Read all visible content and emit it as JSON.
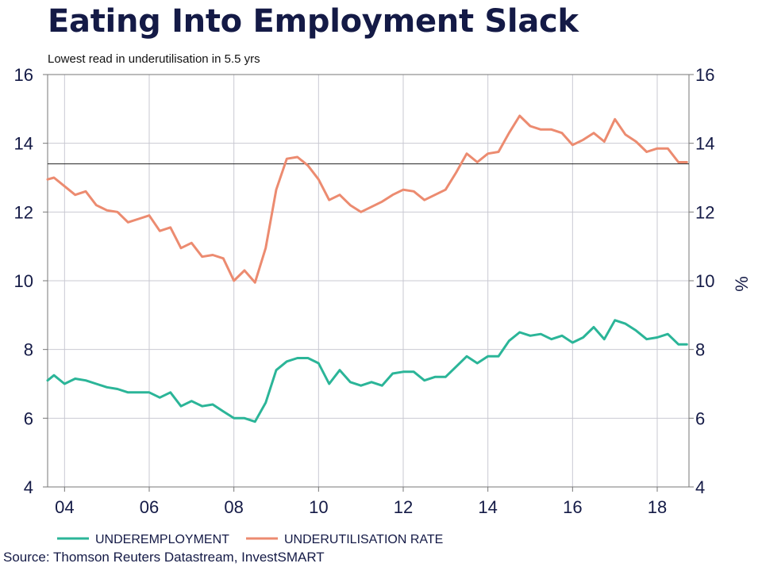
{
  "title": "Eating Into Employment Slack",
  "subtitle": "Lowest read in underutilisation in 5.5 yrs",
  "source": "Source: Thomson Reuters Datastream, InvestSMART",
  "chart_data": {
    "type": "line",
    "title": "Eating Into Employment Slack",
    "subtitle": "Lowest read in underutilisation in 5.5 yrs",
    "xlabel": "",
    "ylabel_left": "",
    "ylabel_right": "%",
    "xlim": [
      2003.6,
      2018.75
    ],
    "ylim": [
      4,
      16
    ],
    "x_ticks": [
      2004,
      2006,
      2008,
      2010,
      2012,
      2014,
      2016,
      2018
    ],
    "x_tick_labels": [
      "04",
      "06",
      "08",
      "10",
      "12",
      "14",
      "16",
      "18"
    ],
    "y_ticks": [
      4,
      6,
      8,
      10,
      12,
      14,
      16
    ],
    "y_tick_labels": [
      "4",
      "6",
      "8",
      "10",
      "12",
      "14",
      "16"
    ],
    "grid": true,
    "legend_position": "bottom",
    "reference_line": {
      "y": 13.4
    },
    "x": [
      2003.6,
      2003.75,
      2004.0,
      2004.25,
      2004.5,
      2004.75,
      2005.0,
      2005.25,
      2005.5,
      2005.75,
      2006.0,
      2006.25,
      2006.5,
      2006.75,
      2007.0,
      2007.25,
      2007.5,
      2007.75,
      2008.0,
      2008.25,
      2008.5,
      2008.75,
      2009.0,
      2009.25,
      2009.5,
      2009.75,
      2010.0,
      2010.25,
      2010.5,
      2010.75,
      2011.0,
      2011.25,
      2011.5,
      2011.75,
      2012.0,
      2012.25,
      2012.5,
      2012.75,
      2013.0,
      2013.25,
      2013.5,
      2013.75,
      2014.0,
      2014.25,
      2014.5,
      2014.75,
      2015.0,
      2015.25,
      2015.5,
      2015.75,
      2016.0,
      2016.25,
      2016.5,
      2016.75,
      2017.0,
      2017.25,
      2017.5,
      2017.75,
      2018.0,
      2018.25,
      2018.5,
      2018.7
    ],
    "series": [
      {
        "name": "UNDEREMPLOYMENT",
        "color": "#2bb598",
        "values": [
          7.1,
          7.25,
          7.0,
          7.15,
          7.1,
          7.0,
          6.9,
          6.85,
          6.75,
          6.75,
          6.75,
          6.6,
          6.75,
          6.35,
          6.5,
          6.35,
          6.4,
          6.2,
          6.0,
          6.0,
          5.9,
          6.45,
          7.4,
          7.65,
          7.75,
          7.75,
          7.6,
          7.0,
          7.4,
          7.05,
          6.95,
          7.05,
          6.95,
          7.3,
          7.35,
          7.35,
          7.1,
          7.2,
          7.2,
          7.5,
          7.8,
          7.6,
          7.8,
          7.8,
          8.25,
          8.5,
          8.4,
          8.45,
          8.3,
          8.4,
          8.2,
          8.35,
          8.65,
          8.3,
          8.85,
          8.75,
          8.55,
          8.3,
          8.35,
          8.45,
          8.15,
          8.15
        ]
      },
      {
        "name": "UNDERUTILISATION RATE",
        "color": "#ec8b70",
        "values": [
          12.95,
          13.0,
          12.75,
          12.5,
          12.6,
          12.2,
          12.05,
          12.0,
          11.7,
          11.8,
          11.9,
          11.45,
          11.55,
          10.95,
          11.1,
          10.7,
          10.75,
          10.65,
          10.0,
          10.3,
          9.95,
          10.95,
          12.65,
          13.55,
          13.6,
          13.35,
          12.95,
          12.35,
          12.5,
          12.2,
          12.0,
          12.15,
          12.3,
          12.5,
          12.65,
          12.6,
          12.35,
          12.5,
          12.65,
          13.15,
          13.7,
          13.45,
          13.7,
          13.75,
          14.3,
          14.8,
          14.5,
          14.4,
          14.4,
          14.3,
          13.95,
          14.1,
          14.3,
          14.05,
          14.7,
          14.25,
          14.05,
          13.75,
          13.85,
          13.85,
          13.45,
          13.45
        ]
      }
    ]
  }
}
